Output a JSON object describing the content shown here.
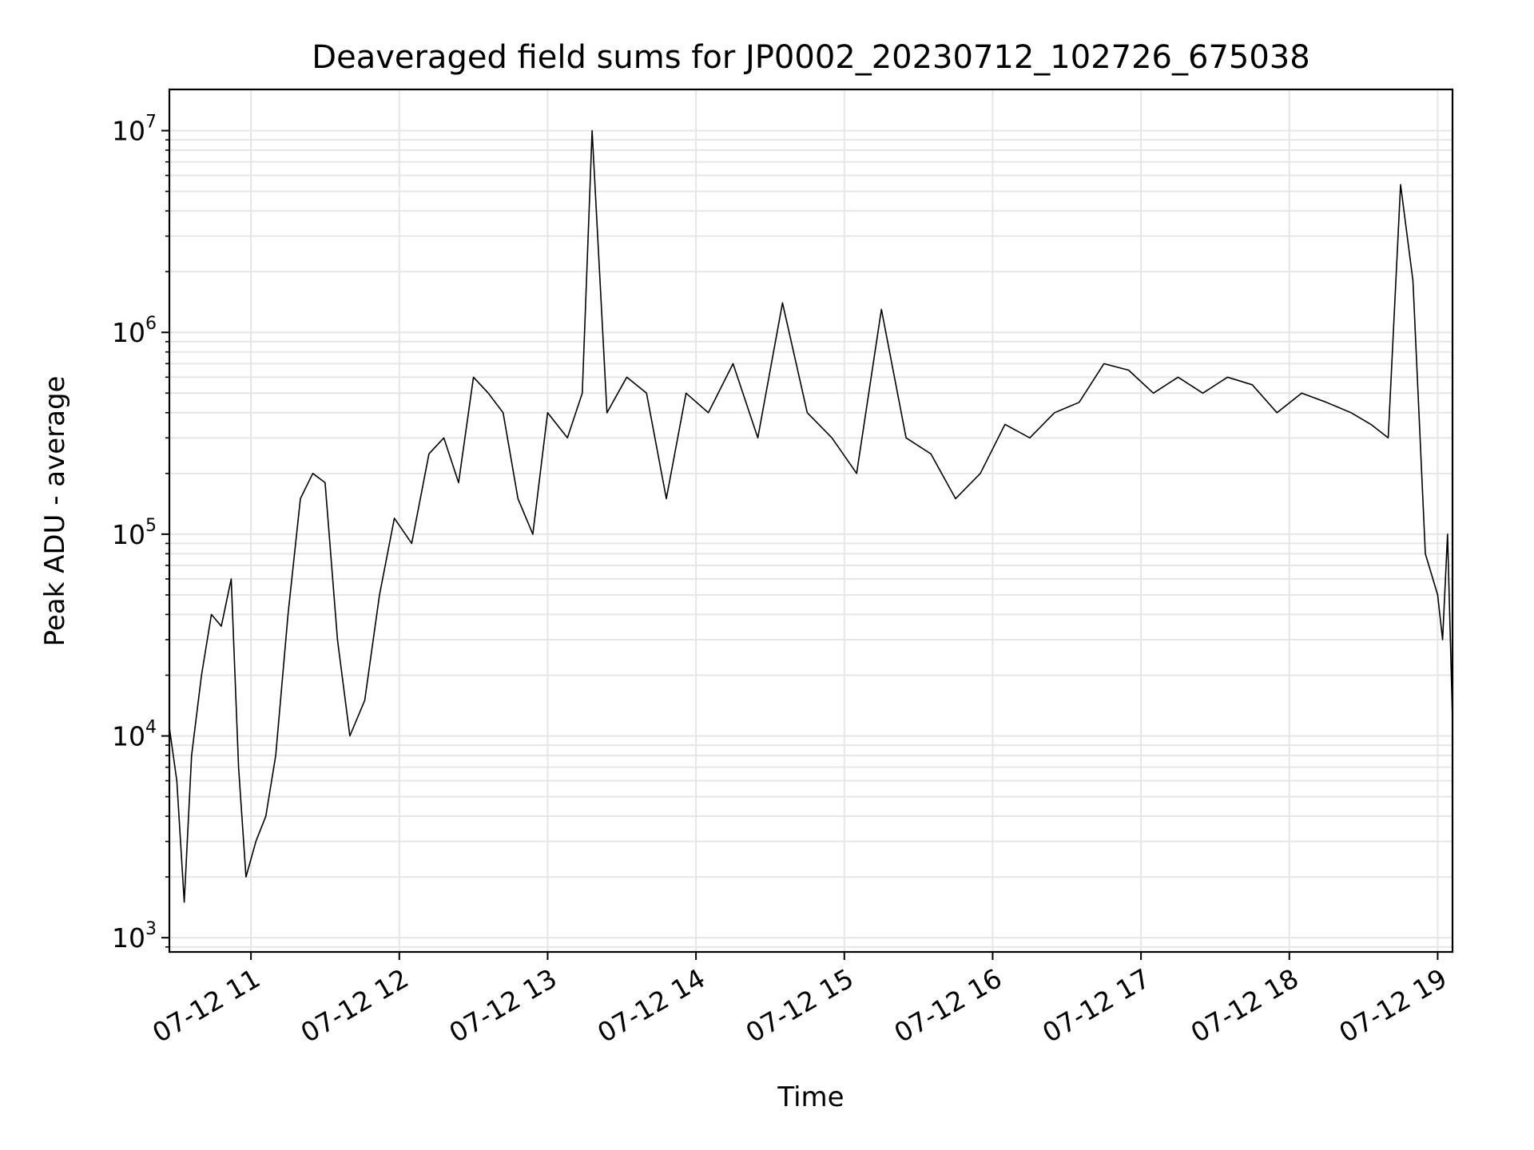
{
  "chart_data": {
    "type": "line",
    "title": "Deaveraged field sums for JP0002_20230712_102726_675038",
    "xlabel": "Time",
    "ylabel": "Peak ADU - average",
    "yscale": "log",
    "xlim": [
      "2023-07-12 10:27",
      "2023-07-12 19:06"
    ],
    "ylim": [
      850,
      16000000
    ],
    "grid": "on (major and minor)",
    "x_ticks": [
      {
        "value": "2023-07-12 11:00",
        "label": "07-12 11"
      },
      {
        "value": "2023-07-12 12:00",
        "label": "07-12 12"
      },
      {
        "value": "2023-07-12 13:00",
        "label": "07-12 13"
      },
      {
        "value": "2023-07-12 14:00",
        "label": "07-12 14"
      },
      {
        "value": "2023-07-12 15:00",
        "label": "07-12 15"
      },
      {
        "value": "2023-07-12 16:00",
        "label": "07-12 16"
      },
      {
        "value": "2023-07-12 17:00",
        "label": "07-12 17"
      },
      {
        "value": "2023-07-12 18:00",
        "label": "07-12 18"
      },
      {
        "value": "2023-07-12 19:00",
        "label": "07-12 19"
      }
    ],
    "y_ticks": [
      {
        "value": 1000,
        "base": "10",
        "exp": "3"
      },
      {
        "value": 10000,
        "base": "10",
        "exp": "4"
      },
      {
        "value": 100000,
        "base": "10",
        "exp": "5"
      },
      {
        "value": 1000000,
        "base": "10",
        "exp": "6"
      },
      {
        "value": 10000000,
        "base": "10",
        "exp": "7"
      }
    ],
    "series": [
      {
        "color": "#000000",
        "x": [
          "2023-07-12 10:27",
          "2023-07-12 10:30",
          "2023-07-12 10:33",
          "2023-07-12 10:36",
          "2023-07-12 10:40",
          "2023-07-12 10:44",
          "2023-07-12 10:48",
          "2023-07-12 10:52",
          "2023-07-12 10:55",
          "2023-07-12 10:58",
          "2023-07-12 11:02",
          "2023-07-12 11:06",
          "2023-07-12 11:10",
          "2023-07-12 11:15",
          "2023-07-12 11:20",
          "2023-07-12 11:25",
          "2023-07-12 11:30",
          "2023-07-12 11:35",
          "2023-07-12 11:40",
          "2023-07-12 11:46",
          "2023-07-12 11:52",
          "2023-07-12 11:58",
          "2023-07-12 12:05",
          "2023-07-12 12:12",
          "2023-07-12 12:18",
          "2023-07-12 12:24",
          "2023-07-12 12:30",
          "2023-07-12 12:36",
          "2023-07-12 12:42",
          "2023-07-12 12:48",
          "2023-07-12 12:54",
          "2023-07-12 13:00",
          "2023-07-12 13:08",
          "2023-07-12 13:14",
          "2023-07-12 13:18",
          "2023-07-12 13:24",
          "2023-07-12 13:32",
          "2023-07-12 13:40",
          "2023-07-12 13:48",
          "2023-07-12 13:56",
          "2023-07-12 14:05",
          "2023-07-12 14:15",
          "2023-07-12 14:25",
          "2023-07-12 14:35",
          "2023-07-12 14:45",
          "2023-07-12 14:55",
          "2023-07-12 15:05",
          "2023-07-12 15:15",
          "2023-07-12 15:25",
          "2023-07-12 15:35",
          "2023-07-12 15:45",
          "2023-07-12 15:55",
          "2023-07-12 16:05",
          "2023-07-12 16:15",
          "2023-07-12 16:25",
          "2023-07-12 16:35",
          "2023-07-12 16:45",
          "2023-07-12 16:55",
          "2023-07-12 17:05",
          "2023-07-12 17:15",
          "2023-07-12 17:25",
          "2023-07-12 17:35",
          "2023-07-12 17:45",
          "2023-07-12 17:55",
          "2023-07-12 18:05",
          "2023-07-12 18:15",
          "2023-07-12 18:25",
          "2023-07-12 18:33",
          "2023-07-12 18:40",
          "2023-07-12 18:45",
          "2023-07-12 18:50",
          "2023-07-12 18:55",
          "2023-07-12 19:00",
          "2023-07-12 19:02",
          "2023-07-12 19:04",
          "2023-07-12 19:06"
        ],
        "y": [
          11000,
          6000,
          1500,
          8000,
          20000,
          40000,
          35000,
          60000,
          7000,
          2000,
          3000,
          4000,
          8000,
          40000,
          150000,
          200000,
          180000,
          30000,
          10000,
          15000,
          50000,
          120000,
          90000,
          250000,
          300000,
          180000,
          600000,
          500000,
          400000,
          150000,
          100000,
          400000,
          300000,
          500000,
          10000000,
          400000,
          600000,
          500000,
          150000,
          500000,
          400000,
          700000,
          300000,
          1400000,
          400000,
          300000,
          200000,
          1300000,
          300000,
          250000,
          150000,
          200000,
          350000,
          300000,
          400000,
          450000,
          700000,
          650000,
          500000,
          600000,
          500000,
          600000,
          550000,
          400000,
          500000,
          450000,
          400000,
          350000,
          300000,
          5400000,
          1800000,
          80000,
          50000,
          30000,
          100000,
          12000
        ]
      }
    ]
  }
}
